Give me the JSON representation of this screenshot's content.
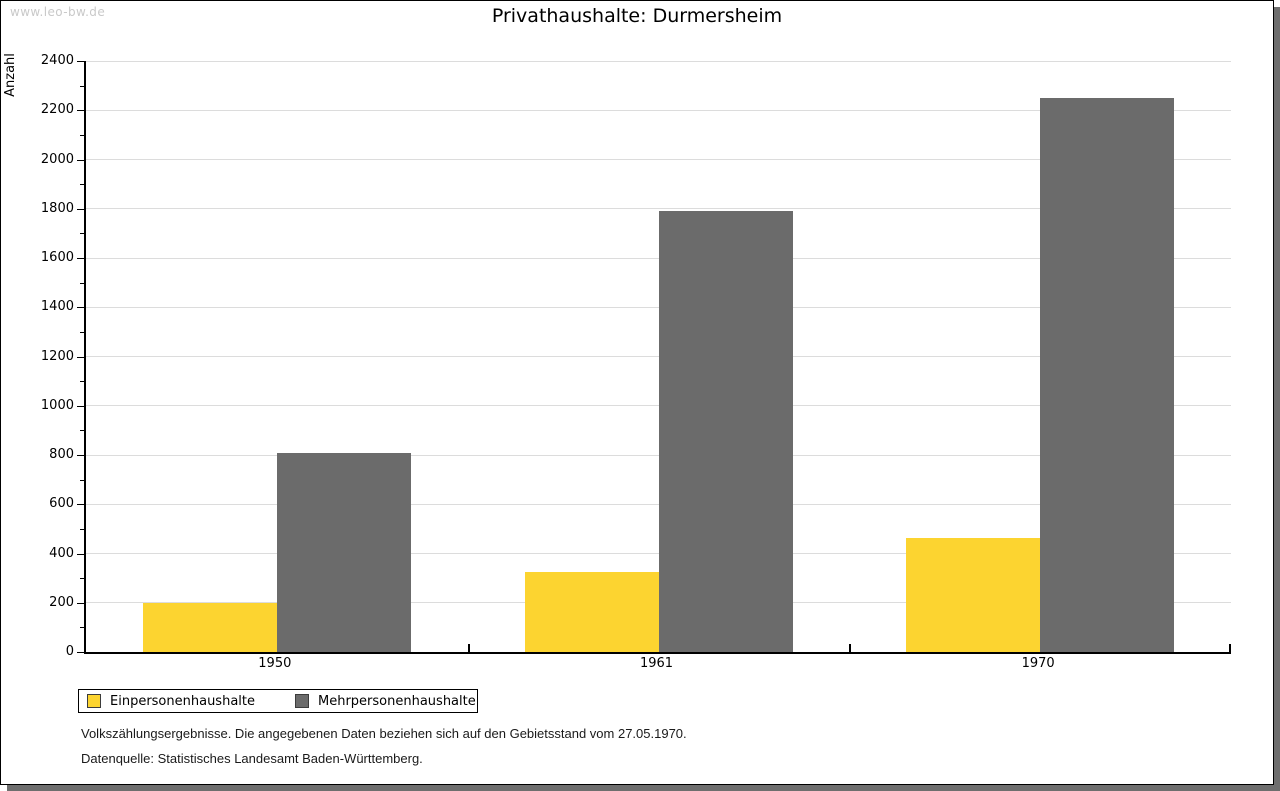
{
  "watermark": {
    "text": "www.leo-bw.de"
  },
  "footer": {
    "line1": "Volkszählungsergebnisse. Die angegebenen Daten beziehen sich auf den Gebietsstand vom 27.05.1970.",
    "line2": "Datenquelle: Statistisches Landesamt Baden-Württemberg."
  },
  "colors": {
    "einpersonenhaushalte": "#FCD430",
    "mehrpersonenhaushalte": "#6B6B6B",
    "gridline": "#DCDCDC",
    "axis": "#000000",
    "watermark_text": "#C9C9C9",
    "drop_shadow": "#6E6E6E"
  },
  "chart_data": {
    "type": "bar",
    "title": "Privathaushalte: Durmersheim",
    "ylabel": "Anzahl",
    "xlabel": "",
    "categories": [
      "1950",
      "1961",
      "1970"
    ],
    "series": [
      {
        "name": "Einpersonenhaushalte",
        "color": "#FCD430",
        "values": [
          200,
          325,
          465
        ]
      },
      {
        "name": "Mehrpersonenhaushalte",
        "color": "#6B6B6B",
        "values": [
          810,
          1790,
          2250
        ]
      }
    ],
    "ylim": [
      0,
      2400
    ],
    "ytick_step": 200,
    "yminor_step": 100,
    "grid": true,
    "legend_position": "bottom-left"
  }
}
